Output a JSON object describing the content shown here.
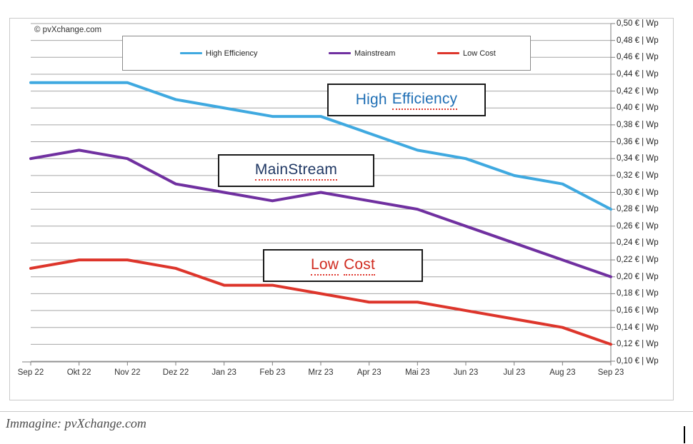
{
  "figure": {
    "copyright": "© pvXchange.com",
    "caption": "Immagine: pvXchange.com"
  },
  "annotations": {
    "high_efficiency": {
      "word1": "High",
      "word2": "Efficiency",
      "color": "#1f6fb5"
    },
    "mainstream": {
      "text": "MainStream",
      "color": "#203864"
    },
    "low_cost": {
      "word1": "Low",
      "word2": "Cost",
      "color": "#d02b20"
    }
  },
  "chart_data": {
    "type": "line",
    "title": "",
    "xlabel": "",
    "ylabel": "€ | Wp",
    "grid": "horizontal",
    "legend_position": "top",
    "ylim": [
      0.1,
      0.5
    ],
    "y_step": 0.02,
    "categories": [
      "Sep 22",
      "Okt 22",
      "Nov 22",
      "Dez 22",
      "Jan 23",
      "Feb 23",
      "Mrz 23",
      "Apr 23",
      "Mai 23",
      "Jun 23",
      "Jul 23",
      "Aug 23",
      "Sep 23"
    ],
    "series": [
      {
        "name": "High Efficiency",
        "color": "#3fa9e0",
        "values": [
          0.43,
          0.43,
          0.43,
          0.41,
          0.4,
          0.39,
          0.39,
          0.37,
          0.35,
          0.34,
          0.32,
          0.31,
          0.28
        ]
      },
      {
        "name": "Mainstream",
        "color": "#7030a0",
        "values": [
          0.34,
          0.35,
          0.34,
          0.31,
          0.3,
          0.29,
          0.3,
          0.29,
          0.28,
          0.26,
          0.24,
          0.22,
          0.2
        ]
      },
      {
        "name": "Low Cost",
        "color": "#dd352b",
        "values": [
          0.21,
          0.22,
          0.22,
          0.21,
          0.19,
          0.19,
          0.18,
          0.17,
          0.17,
          0.16,
          0.15,
          0.14,
          0.12
        ]
      }
    ],
    "y_tick_labels": [
      "0,50 € | Wp",
      "0,48 € | Wp",
      "0,46 € | Wp",
      "0,44 € | Wp",
      "0,42 € | Wp",
      "0,40 € | Wp",
      "0,38 € | Wp",
      "0,36 € | Wp",
      "0,34 € | Wp",
      "0,32 € | Wp",
      "0,30 € | Wp",
      "0,28 € | Wp",
      "0,26 € | Wp",
      "0,24 € | Wp",
      "0,22 € | Wp",
      "0,20 € | Wp",
      "0,18 € | Wp",
      "0,16 € | Wp",
      "0,14 € | Wp",
      "0,12 € | Wp",
      "0,10 € | Wp"
    ],
    "colors": {
      "gridline": "#a6a6a6",
      "axis": "#7f7f7f"
    }
  }
}
